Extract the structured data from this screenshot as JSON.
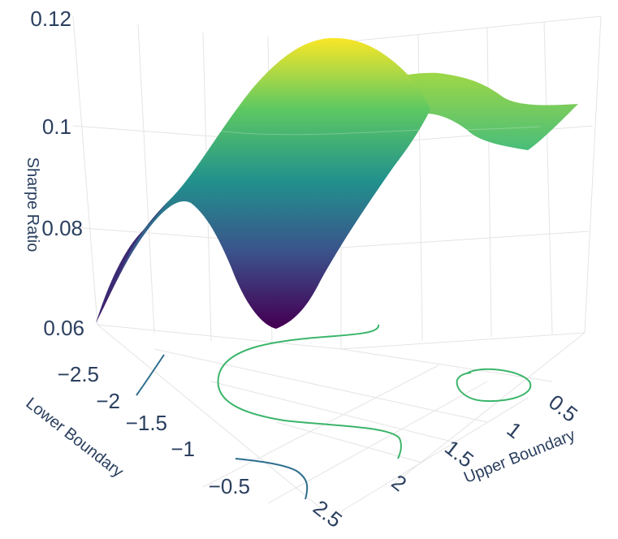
{
  "chart_data": {
    "type": "surface3d",
    "title": "",
    "axes": {
      "x": {
        "label": "Upper Boundary",
        "range": [
          0.5,
          2.5
        ],
        "ticks": [
          "0.5",
          "1",
          "1.5",
          "2",
          "2.5"
        ]
      },
      "y": {
        "label": "Lower Boundary",
        "range": [
          -2.5,
          -0.5
        ],
        "ticks": [
          "−2.5",
          "−2",
          "−1.5",
          "−1",
          "−0.5"
        ]
      },
      "z": {
        "label": "Sharpe Ratio",
        "range": [
          0.06,
          0.12
        ],
        "ticks": [
          "0.12",
          "0.1",
          "0.08",
          "0.06"
        ]
      }
    },
    "colorscale": "viridis",
    "colorscale_colors": [
      "#440154",
      "#3b528b",
      "#21918c",
      "#5ec962",
      "#fde725"
    ],
    "surface_peak": {
      "upper": 1.3,
      "lower": -2.3,
      "sharpe": 0.119
    },
    "surface_min": {
      "upper": 2.0,
      "lower": -1.8,
      "sharpe": 0.062
    },
    "grid": true,
    "legend": "none",
    "floor_contours": true
  }
}
